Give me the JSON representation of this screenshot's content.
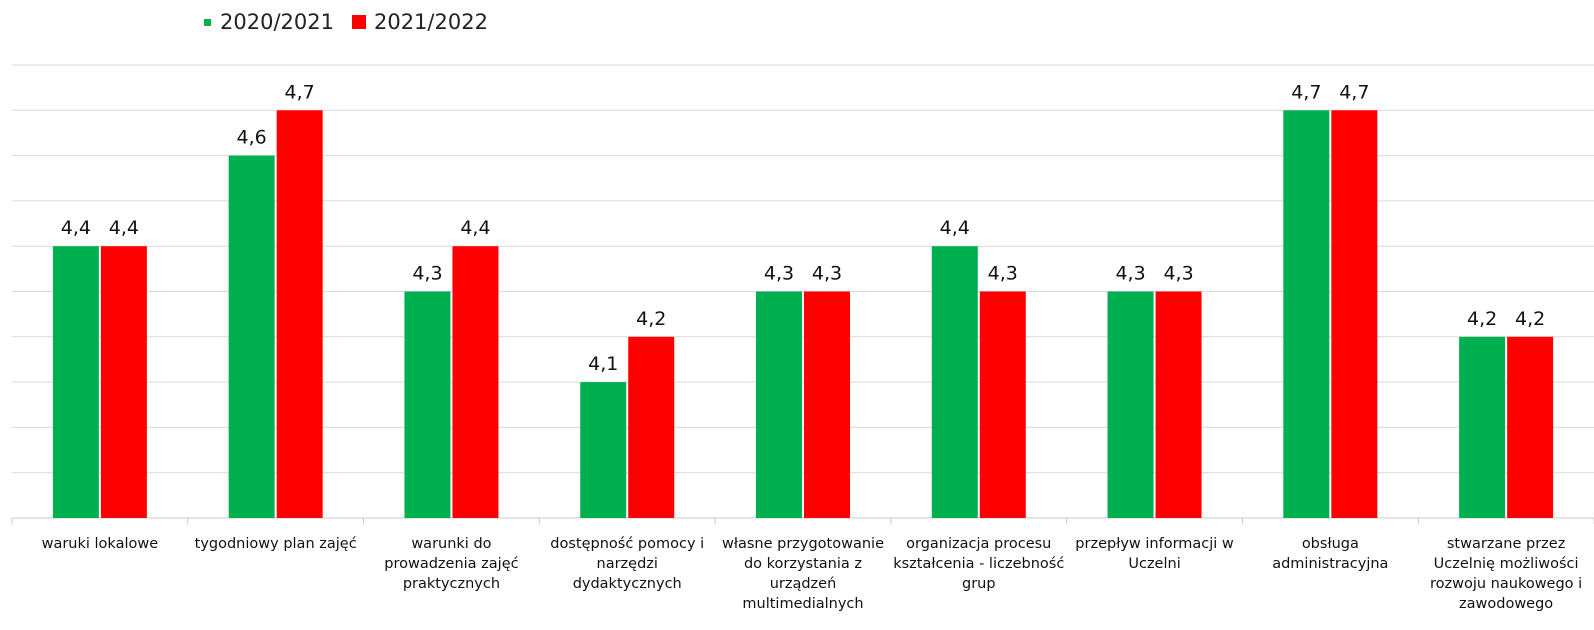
{
  "chart_data": {
    "type": "bar",
    "title": "",
    "xlabel": "",
    "ylabel": "",
    "ylim": [
      3.8,
      4.8
    ],
    "grid": true,
    "legend_position": "top-left",
    "categories": [
      "waruki lokalowe",
      "tygodniowy plan zajęć",
      "warunki do prowadzenia zajęć praktycznych",
      "dostępność pomocy i narzędzi dydaktycznych",
      "własne przygotowanie do korzystania z urządzeń multimedialnych",
      "organizacja procesu kształcenia - liczebność grup",
      "przepływ informacji w Uczelni",
      "obsługa administracyjna",
      "stwarzane przez Uczelnię możliwości rozwoju naukowego i zawodowego"
    ],
    "category_lines": [
      [
        "waruki lokalowe"
      ],
      [
        "tygodniowy plan zajęć"
      ],
      [
        "warunki do",
        "prowadzenia zajęć",
        "praktycznych"
      ],
      [
        "dostępność pomocy i",
        "narzędzi",
        "dydaktycznych"
      ],
      [
        "własne przygotowanie",
        "do korzystania z",
        "urządzeń",
        "multimedialnych"
      ],
      [
        "organizacja procesu",
        "kształcenia - liczebność",
        "grup"
      ],
      [
        "przepływ informacji w",
        "Uczelni"
      ],
      [
        "obsługa",
        "administracyjna"
      ],
      [
        "stwarzane przez",
        "Uczelnię możliwości",
        "rozwoju naukowego i",
        "zawodowego"
      ]
    ],
    "series": [
      {
        "name": "2020/2021",
        "color": "#00b050",
        "values": [
          4.4,
          4.6,
          4.3,
          4.1,
          4.3,
          4.4,
          4.3,
          4.7,
          4.2
        ],
        "labels": [
          "4,4",
          "4,6",
          "4,3",
          "4,1",
          "4,3",
          "4,4",
          "4,3",
          "4,7",
          "4,2"
        ]
      },
      {
        "name": "2021/2022",
        "color": "#ff0000",
        "values": [
          4.4,
          4.7,
          4.4,
          4.2,
          4.3,
          4.3,
          4.3,
          4.7,
          4.2
        ],
        "labels": [
          "4,4",
          "4,7",
          "4,4",
          "4,2",
          "4,3",
          "4,3",
          "4,3",
          "4,7",
          "4,2"
        ]
      }
    ]
  }
}
